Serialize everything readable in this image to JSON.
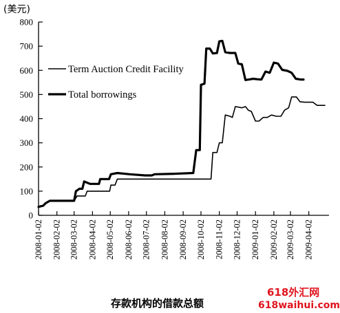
{
  "chart_data": {
    "type": "line",
    "title": "",
    "caption": "存款机构的借款总额",
    "ylabel": "(美元)",
    "xlabel": "",
    "ylim": [
      0,
      800
    ],
    "yticks": [
      0,
      100,
      200,
      300,
      400,
      500,
      600,
      700,
      800
    ],
    "xlim": [
      "2008-01-02",
      "2009-05-06"
    ],
    "xticks": [
      "2008-01-02",
      "2008-02-02",
      "2008-03-02",
      "2008-04-02",
      "2008-05-02",
      "2008-06-02",
      "2008-07-02",
      "2008-08-02",
      "2008-09-02",
      "2008-10-02",
      "2008-11-02",
      "2008-12-02",
      "2009-01-02",
      "2009-02-02",
      "2009-03-02",
      "2009-04-02"
    ],
    "grid": false,
    "legend_position": "top-left",
    "series": [
      {
        "name": "Term Auction Credit Facility",
        "line_width": "thin",
        "points": [
          [
            "2008-01-02",
            35
          ],
          [
            "2008-01-10",
            40
          ],
          [
            "2008-01-14",
            50
          ],
          [
            "2008-01-21",
            60
          ],
          [
            "2008-03-02",
            60
          ],
          [
            "2008-03-07",
            80
          ],
          [
            "2008-03-21",
            80
          ],
          [
            "2008-03-24",
            100
          ],
          [
            "2008-05-01",
            100
          ],
          [
            "2008-05-03",
            125
          ],
          [
            "2008-05-10",
            125
          ],
          [
            "2008-05-14",
            150
          ],
          [
            "2008-09-28",
            150
          ],
          [
            "2008-10-02",
            150
          ],
          [
            "2008-10-05",
            150
          ],
          [
            "2008-10-19",
            150
          ],
          [
            "2008-10-22",
            260
          ],
          [
            "2008-10-29",
            260
          ],
          [
            "2008-11-02",
            300
          ],
          [
            "2008-11-07",
            300
          ],
          [
            "2008-11-12",
            415
          ],
          [
            "2008-11-20",
            410
          ],
          [
            "2008-11-24",
            405
          ],
          [
            "2008-11-29",
            450
          ],
          [
            "2008-12-10",
            445
          ],
          [
            "2008-12-16",
            450
          ],
          [
            "2008-12-21",
            435
          ],
          [
            "2008-12-26",
            430
          ],
          [
            "2009-01-02",
            390
          ],
          [
            "2009-01-08",
            390
          ],
          [
            "2009-01-15",
            405
          ],
          [
            "2009-01-22",
            405
          ],
          [
            "2009-01-29",
            415
          ],
          [
            "2009-02-06",
            410
          ],
          [
            "2009-02-14",
            410
          ],
          [
            "2009-02-20",
            435
          ],
          [
            "2009-02-27",
            445
          ],
          [
            "2009-03-04",
            490
          ],
          [
            "2009-03-12",
            490
          ],
          [
            "2009-03-18",
            470
          ],
          [
            "2009-03-26",
            468
          ],
          [
            "2009-04-09",
            468
          ],
          [
            "2009-04-16",
            455
          ],
          [
            "2009-04-24",
            455
          ],
          [
            "2009-04-29",
            455
          ]
        ]
      },
      {
        "name": "Total borrowings",
        "line_width": "thick",
        "points": [
          [
            "2008-01-02",
            35
          ],
          [
            "2008-01-10",
            40
          ],
          [
            "2008-01-14",
            50
          ],
          [
            "2008-01-21",
            60
          ],
          [
            "2008-03-02",
            60
          ],
          [
            "2008-03-05",
            100
          ],
          [
            "2008-03-11",
            110
          ],
          [
            "2008-03-16",
            110
          ],
          [
            "2008-03-19",
            140
          ],
          [
            "2008-03-29",
            130
          ],
          [
            "2008-04-09",
            130
          ],
          [
            "2008-04-13",
            130
          ],
          [
            "2008-04-15",
            150
          ],
          [
            "2008-04-30",
            150
          ],
          [
            "2008-05-03",
            170
          ],
          [
            "2008-05-14",
            175
          ],
          [
            "2008-06-04",
            170
          ],
          [
            "2008-06-30",
            165
          ],
          [
            "2008-07-11",
            165
          ],
          [
            "2008-07-16",
            170
          ],
          [
            "2008-08-18",
            172
          ],
          [
            "2008-09-19",
            175
          ],
          [
            "2008-09-24",
            270
          ],
          [
            "2008-09-30",
            270
          ],
          [
            "2008-10-02",
            540
          ],
          [
            "2008-10-08",
            545
          ],
          [
            "2008-10-11",
            690
          ],
          [
            "2008-10-17",
            690
          ],
          [
            "2008-10-22",
            670
          ],
          [
            "2008-10-29",
            672
          ],
          [
            "2008-11-02",
            720
          ],
          [
            "2008-11-07",
            722
          ],
          [
            "2008-11-12",
            675
          ],
          [
            "2008-11-20",
            672
          ],
          [
            "2008-11-29",
            672
          ],
          [
            "2008-12-04",
            628
          ],
          [
            "2008-12-10",
            625
          ],
          [
            "2008-12-16",
            560
          ],
          [
            "2008-12-22",
            562
          ],
          [
            "2008-12-29",
            565
          ],
          [
            "2009-01-05",
            563
          ],
          [
            "2009-01-12",
            562
          ],
          [
            "2009-01-19",
            595
          ],
          [
            "2009-01-26",
            590
          ],
          [
            "2009-02-02",
            632
          ],
          [
            "2009-02-09",
            628
          ],
          [
            "2009-02-16",
            602
          ],
          [
            "2009-02-25",
            598
          ],
          [
            "2009-03-04",
            590
          ],
          [
            "2009-03-11",
            565
          ],
          [
            "2009-03-19",
            562
          ],
          [
            "2009-03-24",
            562
          ]
        ]
      }
    ]
  },
  "watermark": {
    "line1": "618外汇网",
    "line2": "618waihui.com",
    "color": "#e0141e"
  }
}
